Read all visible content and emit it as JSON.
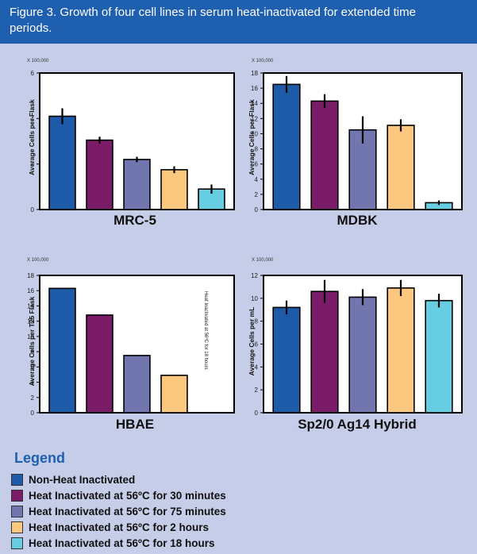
{
  "figure": {
    "title": "Figure 3. Growth of four cell lines in serum heat-inactivated for extended time periods."
  },
  "legend": {
    "title": "Legend",
    "items": [
      {
        "label": "Non-Heat Inactivated",
        "color": "#1d5aa8"
      },
      {
        "label": "Heat Inactivated at 56ºC for 30 minutes",
        "color": "#7b1c68"
      },
      {
        "label": "Heat Inactivated at 56ºC for 75 minutes",
        "color": "#7276ae"
      },
      {
        "label": "Heat Inactivated at 56ºC for 2 hours",
        "color": "#fcc77e"
      },
      {
        "label": "Heat Inactivated at 56ºC for 18 hours",
        "color": "#67cde0"
      }
    ]
  },
  "chart_data": [
    {
      "type": "bar",
      "title": "MRC-5",
      "ylabel": "Average Cells per Flask",
      "scale_label": "X 100,000",
      "ylim": [
        0,
        6
      ],
      "yticks": [
        0,
        2,
        4,
        6
      ],
      "categories": [
        "Non-Heat Inactivated",
        "Heat Inactivated at 56ºC for 30 minutes",
        "Heat Inactivated at 56ºC for 75 minutes",
        "Heat Inactivated at 56ºC for 2 hours",
        "Heat Inactivated at 56ºC for 18 hours"
      ],
      "values": [
        4.1,
        3.05,
        2.2,
        1.75,
        0.9
      ],
      "errors": [
        0.35,
        0.15,
        0.12,
        0.15,
        0.2
      ]
    },
    {
      "type": "bar",
      "title": "MDBK",
      "ylabel": "Average Cells per Flask",
      "scale_label": "X 100,000",
      "ylim": [
        0,
        18
      ],
      "yticks": [
        0,
        2,
        4,
        6,
        8,
        10,
        12,
        14,
        16,
        18
      ],
      "categories": [
        "Non-Heat Inactivated",
        "Heat Inactivated at 56ºC for 30 minutes",
        "Heat Inactivated at 56ºC for 75 minutes",
        "Heat Inactivated at 56ºC for 2 hours",
        "Heat Inactivated at 56ºC for 18 hours"
      ],
      "values": [
        16.5,
        14.3,
        10.5,
        11.1,
        0.9
      ],
      "errors": [
        1.1,
        0.9,
        1.8,
        0.8,
        0.3
      ]
    },
    {
      "type": "bar",
      "title": "HBAE",
      "ylabel": "Average Cells per T25 Flask",
      "scale_label": "X 100,000",
      "ylim": [
        0,
        18
      ],
      "yticks": [
        0,
        2,
        4,
        6,
        8,
        10,
        12,
        14,
        16,
        18
      ],
      "categories": [
        "Non-Heat Inactivated",
        "Heat Inactivated at 56ºC for 30 minutes",
        "Heat Inactivated at 56ºC for 75 minutes",
        "Heat Inactivated at 56ºC for 2 hours"
      ],
      "values": [
        16.3,
        12.8,
        7.5,
        4.9
      ],
      "errors": [
        0,
        0,
        0,
        0
      ],
      "annotation": "Heat Inactivated at 56ºC for 18 hours"
    },
    {
      "type": "bar",
      "title": "Sp2/0 Ag14 Hybrid",
      "ylabel": "Average Cells per mL",
      "scale_label": "X 100,000",
      "ylim": [
        0,
        12
      ],
      "yticks": [
        0,
        2,
        4,
        6,
        8,
        10,
        12
      ],
      "categories": [
        "Non-Heat Inactivated",
        "Heat Inactivated at 56ºC for 30 minutes",
        "Heat Inactivated at 56ºC for 75 minutes",
        "Heat Inactivated at 56ºC for 2 hours",
        "Heat Inactivated at 56ºC for 18 hours"
      ],
      "values": [
        9.2,
        10.6,
        10.1,
        10.9,
        9.8
      ],
      "errors": [
        0.6,
        1.0,
        0.7,
        0.7,
        0.6
      ]
    }
  ]
}
